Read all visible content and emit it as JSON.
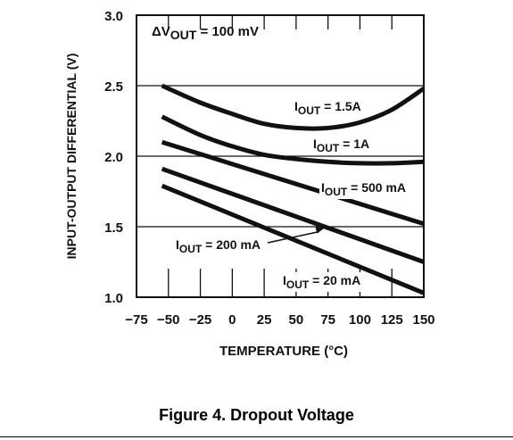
{
  "chart_data": {
    "type": "line",
    "annotation": {
      "prefix": "ΔV",
      "sub": "OUT",
      "suffix": " = 100 mV"
    },
    "xlabel": "TEMPERATURE (°C)",
    "ylabel": "INPUT-OUTPUT DIFFERENTIAL (V)",
    "xlim": [
      -75,
      150
    ],
    "ylim": [
      1.0,
      3.0
    ],
    "x_ticks": [
      -75,
      -50,
      -25,
      0,
      25,
      50,
      75,
      100,
      125,
      150
    ],
    "x_tick_labels": [
      "−75",
      "−50",
      "−25",
      "0",
      "25",
      "50",
      "75",
      "100",
      "125",
      "150"
    ],
    "y_ticks": [
      1.0,
      1.5,
      2.0,
      2.5,
      3.0
    ],
    "y_tick_labels": [
      "1.0",
      "1.5",
      "2.0",
      "2.5",
      "3.0"
    ],
    "grid": true,
    "series": [
      {
        "name": "IOUT = 1.5A",
        "label": {
          "pre": "I",
          "sub": "OUT",
          "post": " = 1.5A"
        },
        "x": [
          -55,
          -25,
          0,
          25,
          50,
          75,
          100,
          125,
          150
        ],
        "y": [
          2.5,
          2.38,
          2.3,
          2.23,
          2.2,
          2.2,
          2.24,
          2.33,
          2.48
        ]
      },
      {
        "name": "IOUT = 1A",
        "label": {
          "pre": "I",
          "sub": "OUT",
          "post": " = 1A"
        },
        "x": [
          -55,
          -25,
          0,
          25,
          50,
          75,
          100,
          125,
          150
        ],
        "y": [
          2.28,
          2.15,
          2.07,
          2.01,
          1.98,
          1.96,
          1.95,
          1.95,
          1.96
        ]
      },
      {
        "name": "IOUT = 500 mA",
        "label": {
          "pre": "I",
          "sub": "OUT",
          "post": " = 500 mA"
        },
        "x": [
          -55,
          150
        ],
        "y": [
          2.1,
          1.52
        ]
      },
      {
        "name": "IOUT = 200 mA",
        "label": {
          "pre": "I",
          "sub": "OUT",
          "post": " = 200 mA"
        },
        "x": [
          -55,
          150
        ],
        "y": [
          1.91,
          1.25
        ]
      },
      {
        "name": "IOUT = 20 mA",
        "label": {
          "pre": "I",
          "sub": "OUT",
          "post": " = 20 mA"
        },
        "x": [
          -55,
          150
        ],
        "y": [
          1.79,
          1.03
        ]
      }
    ]
  },
  "caption": "Figure 4. Dropout Voltage"
}
